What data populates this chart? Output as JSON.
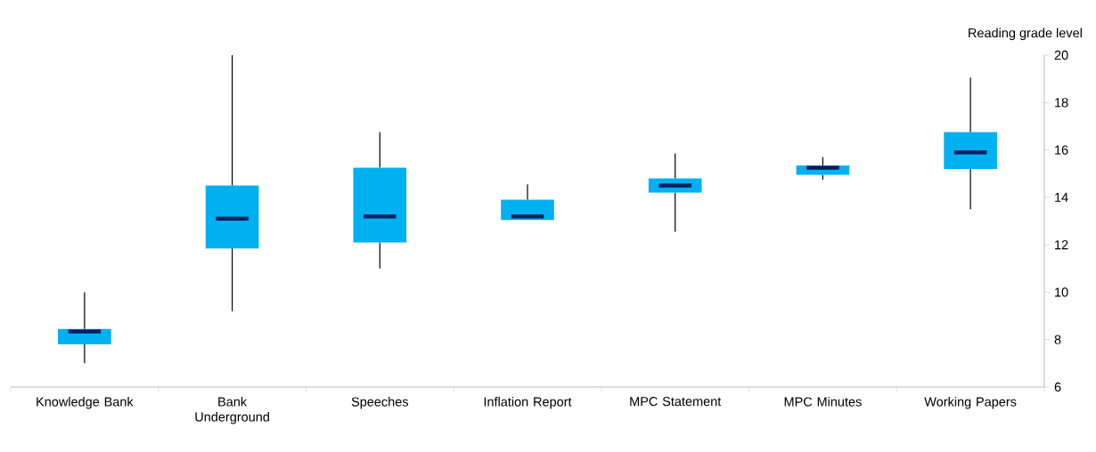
{
  "chart_data": {
    "type": "box",
    "ylabel": "Reading grade level",
    "categories": [
      "Knowledge Bank",
      "Bank Underground",
      "Speeches",
      "Inflation Report",
      "MPC Statement",
      "MPC Minutes",
      "Working Papers"
    ],
    "series": [
      {
        "color": "#00b0f0",
        "boxes": [
          {
            "low": 7.0,
            "q1": 7.8,
            "median": 8.35,
            "q3": 8.45,
            "high": 10.0
          },
          {
            "low": 9.2,
            "q1": 11.85,
            "median": 13.1,
            "q3": 14.5,
            "high": 20.0
          },
          {
            "low": 11.0,
            "q1": 12.1,
            "median": 13.2,
            "q3": 15.25,
            "high": 16.75
          },
          {
            "low": 13.05,
            "q1": 13.05,
            "median": 13.2,
            "q3": 13.9,
            "high": 14.55
          },
          {
            "low": 12.55,
            "q1": 14.2,
            "median": 14.5,
            "q3": 14.8,
            "high": 15.85
          },
          {
            "low": 14.75,
            "q1": 14.95,
            "median": 15.25,
            "q3": 15.35,
            "high": 15.7
          },
          {
            "low": 13.5,
            "q1": 15.2,
            "median": 15.9,
            "q3": 16.75,
            "high": 19.05
          }
        ]
      }
    ],
    "ylim": [
      6,
      20
    ],
    "yticks": [
      6,
      8,
      10,
      12,
      14,
      16,
      18,
      20
    ],
    "grid": false
  }
}
